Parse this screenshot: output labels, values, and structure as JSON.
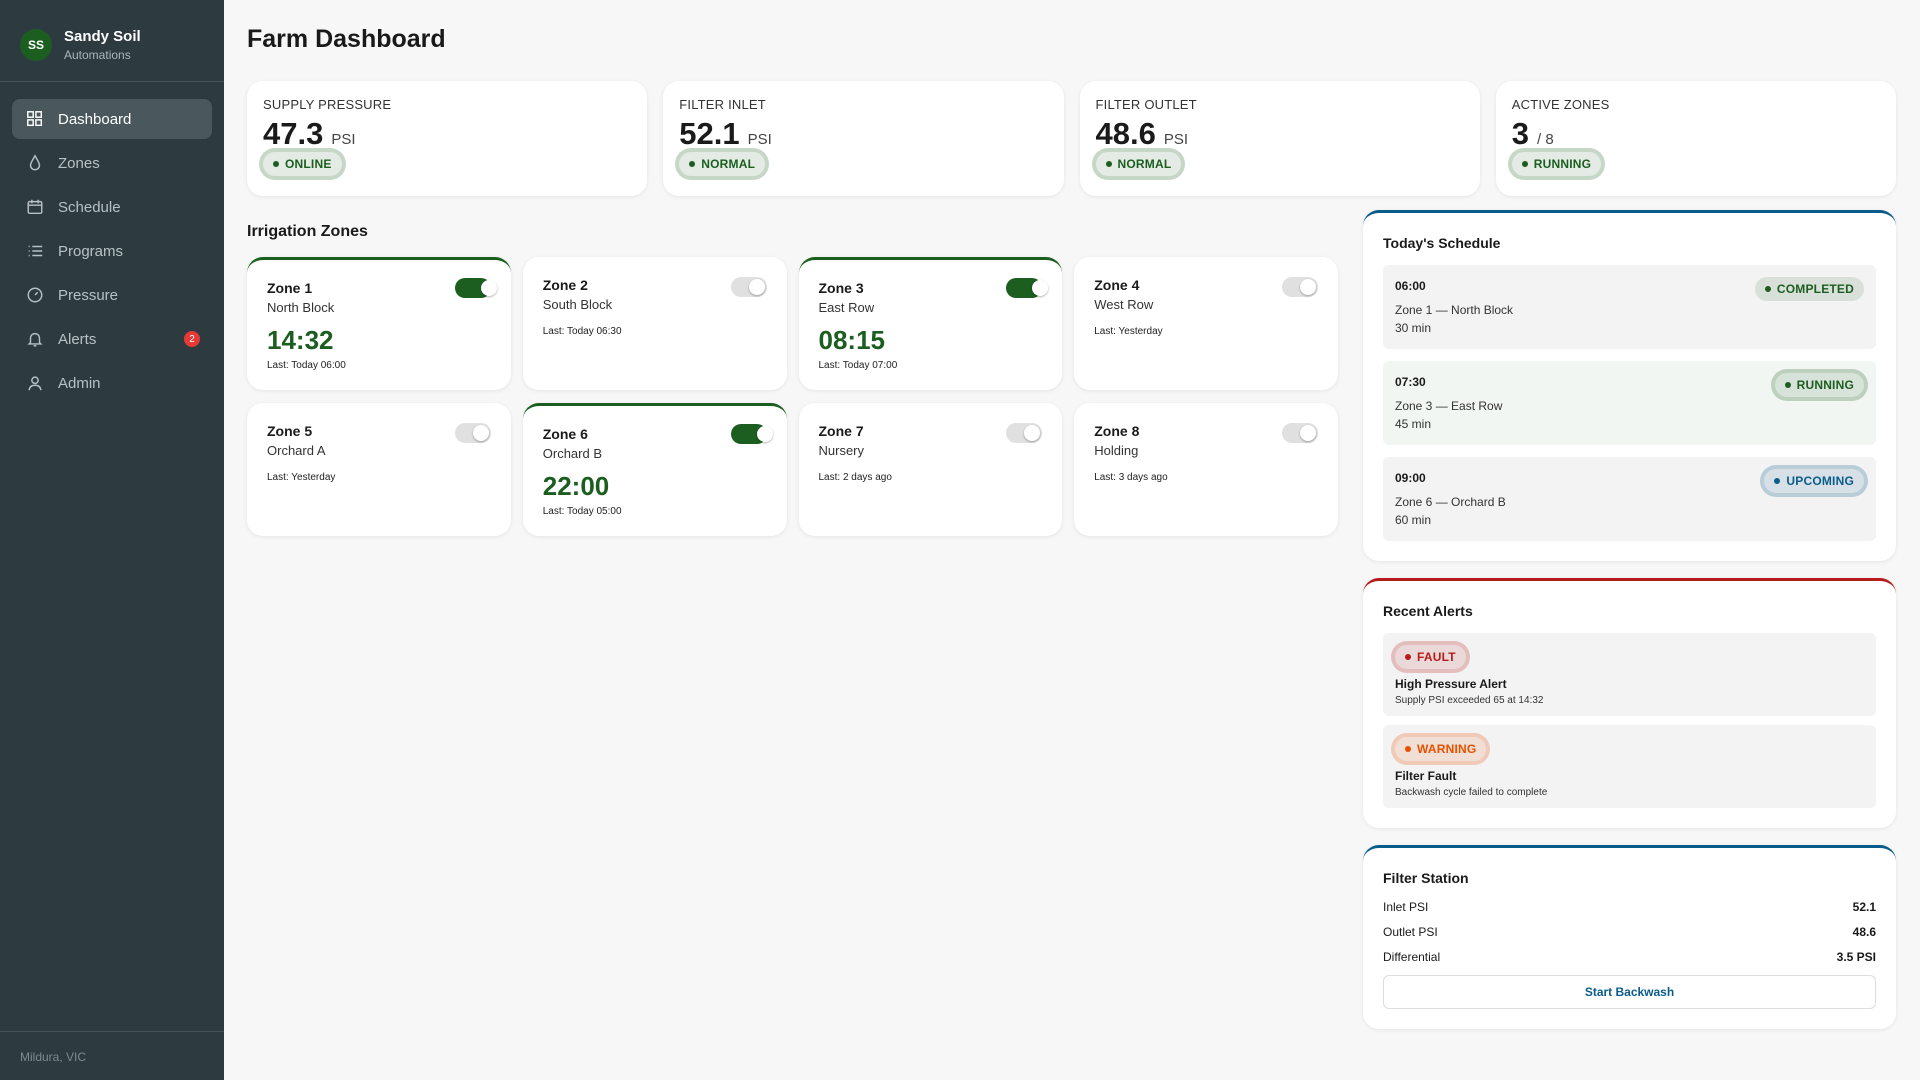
{
  "sidebar": {
    "avatar": "SS",
    "name": "Sandy Soil",
    "subtitle": "Automations",
    "nav": [
      {
        "label": "Dashboard",
        "active": true
      },
      {
        "label": "Zones"
      },
      {
        "label": "Schedule"
      },
      {
        "label": "Programs"
      },
      {
        "label": "Pressure"
      },
      {
        "label": "Alerts",
        "badge": "2"
      },
      {
        "label": "Admin"
      }
    ],
    "footer": "Mildura, VIC"
  },
  "header": {
    "title": "Farm Dashboard"
  },
  "stats": [
    {
      "label": "SUPPLY PRESSURE",
      "value": "47.3",
      "unit": "PSI",
      "status": "ONLINE",
      "color": "#1b5e20"
    },
    {
      "label": "FILTER INLET",
      "value": "52.1",
      "unit": "PSI",
      "status": "NORMAL",
      "color": "#1b5e20"
    },
    {
      "label": "FILTER OUTLET",
      "value": "48.6",
      "unit": "PSI",
      "status": "NORMAL",
      "color": "#1b5e20"
    },
    {
      "label": "ACTIVE ZONES",
      "value": "3",
      "unit": "/ 8",
      "status": "RUNNING",
      "color": "#1b5e20"
    }
  ],
  "zones": {
    "title": "Irrigation Zones",
    "items": [
      {
        "name": "Zone 1",
        "location": "North Block",
        "on": true,
        "timer": "14:32",
        "last": "Last: Today 06:00"
      },
      {
        "name": "Zone 2",
        "location": "South Block",
        "on": false,
        "last": "Last: Today 06:30"
      },
      {
        "name": "Zone 3",
        "location": "East Row",
        "on": true,
        "timer": "08:15",
        "last": "Last: Today 07:00"
      },
      {
        "name": "Zone 4",
        "location": "West Row",
        "on": false,
        "last": "Last: Yesterday"
      },
      {
        "name": "Zone 5",
        "location": "Orchard A",
        "on": false,
        "last": "Last: Yesterday"
      },
      {
        "name": "Zone 6",
        "location": "Orchard B",
        "on": true,
        "timer": "22:00",
        "last": "Last: Today 05:00"
      },
      {
        "name": "Zone 7",
        "location": "Nursery",
        "on": false,
        "last": "Last: 2 days ago"
      },
      {
        "name": "Zone 8",
        "location": "Holding",
        "on": false,
        "last": "Last: 3 days ago"
      }
    ]
  },
  "schedule": {
    "title": "Today's Schedule",
    "accent": "#0a5c8a",
    "items": [
      {
        "time": "06:00",
        "zone": "Zone 1 — North Block",
        "duration": "30 min",
        "status": "COMPLETED",
        "color": "#1b5e20",
        "ring": false
      },
      {
        "time": "07:30",
        "zone": "Zone 3 — East Row",
        "duration": "45 min",
        "status": "RUNNING",
        "color": "#1b5e20",
        "ring": true,
        "highlight": true
      },
      {
        "time": "09:00",
        "zone": "Zone 6 — Orchard B",
        "duration": "60 min",
        "status": "UPCOMING",
        "color": "#0a5c8a",
        "ring": true
      }
    ]
  },
  "alerts": {
    "title": "Recent Alerts",
    "accent": "#b71c1c",
    "items": [
      {
        "level": "FAULT",
        "color": "#b71c1c",
        "title": "High Pressure Alert",
        "detail": "Supply PSI exceeded 65 at 14:32"
      },
      {
        "level": "WARNING",
        "color": "#e65100",
        "title": "Filter Fault",
        "detail": "Backwash cycle failed to complete"
      }
    ]
  },
  "filter": {
    "title": "Filter Station",
    "accent": "#0a5c8a",
    "rows": [
      [
        "Inlet PSI",
        "52.1"
      ],
      [
        "Outlet PSI",
        "48.6"
      ],
      [
        "Differential",
        "3.5 PSI"
      ]
    ],
    "button": "Start Backwash"
  }
}
